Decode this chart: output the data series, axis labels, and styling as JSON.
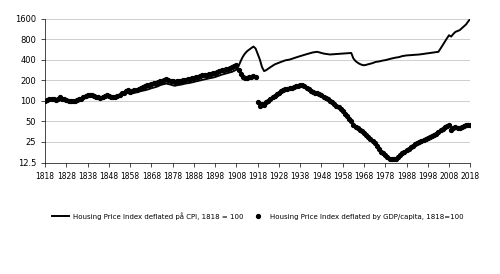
{
  "cpi_data": {
    "1818": 100,
    "1819": 103,
    "1820": 105,
    "1821": 107,
    "1822": 105,
    "1823": 103,
    "1824": 106,
    "1825": 110,
    "1826": 108,
    "1827": 106,
    "1828": 104,
    "1829": 103,
    "1830": 102,
    "1831": 100,
    "1832": 102,
    "1833": 105,
    "1834": 107,
    "1835": 109,
    "1836": 113,
    "1837": 116,
    "1838": 118,
    "1839": 121,
    "1840": 119,
    "1841": 117,
    "1842": 115,
    "1843": 112,
    "1844": 111,
    "1845": 113,
    "1846": 116,
    "1847": 119,
    "1848": 115,
    "1849": 112,
    "1850": 111,
    "1851": 113,
    "1852": 115,
    "1853": 119,
    "1854": 123,
    "1855": 126,
    "1856": 129,
    "1857": 131,
    "1858": 126,
    "1859": 129,
    "1860": 131,
    "1861": 133,
    "1862": 136,
    "1863": 139,
    "1864": 141,
    "1865": 143,
    "1866": 146,
    "1867": 149,
    "1868": 153,
    "1869": 156,
    "1870": 159,
    "1871": 163,
    "1872": 169,
    "1873": 173,
    "1874": 176,
    "1875": 179,
    "1876": 176,
    "1877": 173,
    "1878": 169,
    "1879": 166,
    "1880": 169,
    "1881": 171,
    "1882": 173,
    "1883": 176,
    "1884": 179,
    "1885": 181,
    "1886": 183,
    "1887": 186,
    "1888": 189,
    "1889": 193,
    "1890": 196,
    "1891": 199,
    "1892": 203,
    "1893": 206,
    "1894": 209,
    "1895": 213,
    "1896": 216,
    "1897": 219,
    "1898": 223,
    "1899": 229,
    "1900": 236,
    "1901": 241,
    "1902": 246,
    "1903": 251,
    "1904": 256,
    "1905": 261,
    "1906": 266,
    "1907": 276,
    "1908": 286,
    "1909": 322,
    "1910": 382,
    "1911": 442,
    "1912": 492,
    "1913": 532,
    "1914": 562,
    "1915": 592,
    "1916": 622,
    "1917": 582,
    "1918": 482,
    "1919": 402,
    "1920": 312,
    "1921": 272,
    "1922": 281,
    "1923": 296,
    "1924": 311,
    "1925": 326,
    "1926": 341,
    "1927": 351,
    "1928": 361,
    "1929": 371,
    "1930": 381,
    "1931": 391,
    "1932": 396,
    "1933": 401,
    "1934": 411,
    "1935": 421,
    "1936": 431,
    "1937": 441,
    "1938": 451,
    "1939": 461,
    "1940": 471,
    "1941": 481,
    "1942": 491,
    "1943": 501,
    "1944": 511,
    "1945": 516,
    "1946": 521,
    "1947": 511,
    "1948": 501,
    "1949": 491,
    "1950": 486,
    "1951": 481,
    "1952": 476,
    "1953": 479,
    "1954": 481,
    "1955": 483,
    "1956": 486,
    "1957": 489,
    "1958": 491,
    "1959": 493,
    "1960": 496,
    "1961": 499,
    "1962": 501,
    "1963": 417,
    "1964": 382,
    "1965": 361,
    "1966": 346,
    "1967": 336,
    "1968": 331,
    "1969": 336,
    "1970": 343,
    "1971": 349,
    "1972": 356,
    "1973": 366,
    "1974": 373,
    "1975": 376,
    "1976": 383,
    "1977": 389,
    "1978": 393,
    "1979": 401,
    "1980": 409,
    "1981": 416,
    "1982": 423,
    "1983": 429,
    "1984": 433,
    "1985": 441,
    "1986": 451,
    "1987": 456,
    "1988": 461,
    "1989": 463,
    "1990": 466,
    "1991": 469,
    "1992": 471,
    "1993": 473,
    "1994": 476,
    "1995": 481,
    "1996": 486,
    "1997": 491,
    "1998": 496,
    "1999": 501,
    "2000": 506,
    "2001": 511,
    "2002": 516,
    "2003": 521,
    "2004": 580,
    "2005": 650,
    "2006": 730,
    "2007": 820,
    "2008": 910,
    "2009": 870,
    "2010": 950,
    "2011": 1020,
    "2012": 1050,
    "2013": 1080,
    "2014": 1150,
    "2015": 1220,
    "2016": 1310,
    "2017": 1450,
    "2018": 1580
  },
  "gdp_data": {
    "1818": 100,
    "1819": 103,
    "1820": 106,
    "1821": 108,
    "1822": 105,
    "1823": 103,
    "1824": 106,
    "1825": 112,
    "1826": 108,
    "1827": 105,
    "1828": 103,
    "1829": 101,
    "1830": 100,
    "1831": 98,
    "1832": 100,
    "1833": 103,
    "1834": 106,
    "1835": 108,
    "1836": 112,
    "1837": 118,
    "1838": 120,
    "1839": 122,
    "1840": 120,
    "1841": 118,
    "1842": 115,
    "1843": 112,
    "1844": 110,
    "1845": 115,
    "1846": 118,
    "1847": 122,
    "1848": 118,
    "1849": 114,
    "1850": 112,
    "1851": 115,
    "1852": 118,
    "1853": 122,
    "1854": 128,
    "1855": 132,
    "1856": 138,
    "1857": 142,
    "1858": 135,
    "1859": 138,
    "1860": 142,
    "1861": 145,
    "1862": 150,
    "1863": 155,
    "1864": 158,
    "1865": 162,
    "1866": 168,
    "1867": 172,
    "1868": 178,
    "1869": 182,
    "1870": 185,
    "1871": 188,
    "1872": 192,
    "1873": 198,
    "1874": 202,
    "1875": 205,
    "1876": 200,
    "1877": 198,
    "1878": 195,
    "1879": 190,
    "1880": 192,
    "1881": 195,
    "1882": 198,
    "1883": 200,
    "1884": 202,
    "1885": 205,
    "1886": 208,
    "1887": 212,
    "1888": 215,
    "1889": 220,
    "1890": 225,
    "1891": 230,
    "1892": 235,
    "1893": 238,
    "1894": 240,
    "1895": 245,
    "1896": 248,
    "1897": 252,
    "1898": 258,
    "1899": 265,
    "1900": 272,
    "1901": 278,
    "1902": 285,
    "1903": 290,
    "1904": 295,
    "1905": 302,
    "1906": 308,
    "1907": 318,
    "1908": 330,
    "1909": 280,
    "1910": 250,
    "1911": 220,
    "1912": 215,
    "1913": 218,
    "1914": 222,
    "1915": 225,
    "1916": 228,
    "1917": 220,
    "1918": 95,
    "1919": 85,
    "1920": 90,
    "1921": 88,
    "1922": 95,
    "1923": 100,
    "1924": 105,
    "1925": 112,
    "1926": 118,
    "1927": 125,
    "1928": 132,
    "1929": 138,
    "1930": 145,
    "1931": 148,
    "1932": 150,
    "1933": 152,
    "1934": 155,
    "1935": 158,
    "1936": 162,
    "1937": 165,
    "1938": 170,
    "1939": 172,
    "1940": 165,
    "1941": 155,
    "1942": 148,
    "1943": 140,
    "1944": 135,
    "1945": 130,
    "1946": 128,
    "1947": 125,
    "1948": 120,
    "1949": 115,
    "1950": 110,
    "1951": 105,
    "1952": 100,
    "1953": 95,
    "1954": 90,
    "1955": 85,
    "1956": 80,
    "1957": 75,
    "1958": 70,
    "1959": 65,
    "1960": 60,
    "1961": 55,
    "1962": 50,
    "1963": 45,
    "1964": 42,
    "1965": 40,
    "1966": 38,
    "1967": 36,
    "1968": 34,
    "1969": 32,
    "1970": 30,
    "1971": 28,
    "1972": 26,
    "1973": 24,
    "1974": 22,
    "1975": 20,
    "1976": 18,
    "1977": 17,
    "1978": 16,
    "1979": 15,
    "1980": 14,
    "1981": 14,
    "1982": 14,
    "1983": 14,
    "1984": 15,
    "1985": 16,
    "1986": 17,
    "1987": 18,
    "1988": 19,
    "1989": 20,
    "1990": 21,
    "1991": 22,
    "1992": 23,
    "1993": 24,
    "1994": 25,
    "1995": 26,
    "1996": 27,
    "1997": 28,
    "1998": 29,
    "1999": 30,
    "2000": 31,
    "2001": 32,
    "2002": 33,
    "2003": 35,
    "2004": 37,
    "2005": 39,
    "2006": 41,
    "2007": 43,
    "2008": 44,
    "2009": 38,
    "2010": 40,
    "2011": 41,
    "2012": 40,
    "2013": 40,
    "2014": 42,
    "2015": 43,
    "2016": 44,
    "2017": 45,
    "2018": 44
  },
  "yticks": [
    12.5,
    25,
    50,
    100,
    200,
    400,
    800,
    1600
  ],
  "xticks": [
    1818,
    1828,
    1838,
    1848,
    1858,
    1868,
    1878,
    1888,
    1898,
    1908,
    1918,
    1928,
    1938,
    1948,
    1958,
    1968,
    1978,
    1988,
    1998,
    2008,
    2018
  ],
  "xlim": [
    1818,
    2018
  ],
  "ylim": [
    12.5,
    1600
  ],
  "legend1": "Housing Price Index deflated på CPI, 1818 = 100",
  "legend2": "Housing Price Index deflated by GDP/capita, 1818=100",
  "line1_color": "#000000",
  "line2_color": "#000000",
  "background_color": "#ffffff",
  "grid_color": "#bbbbbb"
}
